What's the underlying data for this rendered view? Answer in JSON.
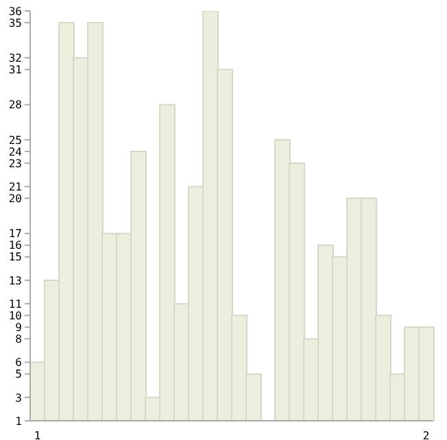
{
  "chart_data": {
    "type": "bar",
    "categories": [
      "1",
      null,
      null,
      null,
      null,
      null,
      null,
      null,
      null,
      null,
      null,
      null,
      null,
      null,
      null,
      null,
      null,
      null,
      null,
      null,
      null,
      null,
      null,
      null,
      null,
      null,
      null,
      "2"
    ],
    "values": [
      6,
      13,
      35,
      32,
      35,
      17,
      17,
      24,
      3,
      28,
      11,
      21,
      36,
      31,
      10,
      5,
      1,
      25,
      23,
      8,
      16,
      15,
      20,
      20,
      10,
      5,
      9,
      9
    ],
    "color": "#eeeedf",
    "ylim": [
      1,
      36
    ],
    "yticks": [
      1,
      3,
      5,
      6,
      8,
      9,
      10,
      11,
      13,
      15,
      16,
      17,
      20,
      21,
      23,
      24,
      25,
      28,
      31,
      32,
      35,
      36
    ]
  }
}
